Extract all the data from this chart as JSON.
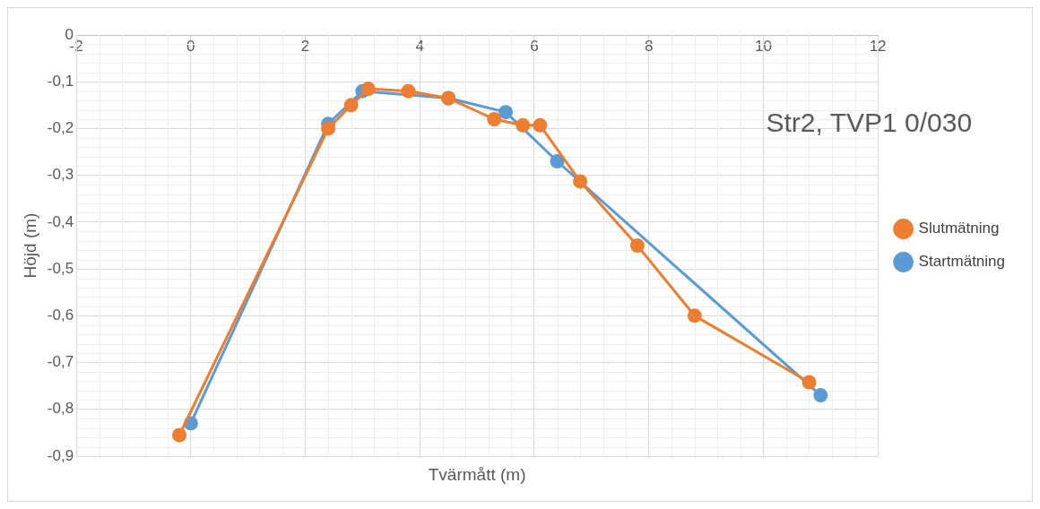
{
  "chart_data": {
    "type": "line",
    "annotations": [
      "Str2, TVP1 0/030"
    ],
    "xlabel": "Tvärmått (m)",
    "ylabel": "Höjd (m)",
    "xlim": [
      -2,
      12
    ],
    "xticks": [
      -2,
      0,
      2,
      4,
      6,
      8,
      10,
      12
    ],
    "ylim": [
      -0.9,
      0
    ],
    "yticks": [
      {
        "value": -0.9,
        "label": "-0,9"
      },
      {
        "value": -0.8,
        "label": "-0,8"
      },
      {
        "value": -0.7,
        "label": "-0,7"
      },
      {
        "value": -0.6,
        "label": "-0,6"
      },
      {
        "value": -0.5,
        "label": "-0,5"
      },
      {
        "value": -0.4,
        "label": "-0,4"
      },
      {
        "value": -0.3,
        "label": "-0,3"
      },
      {
        "value": -0.2,
        "label": "-0,2"
      },
      {
        "value": -0.1,
        "label": "-0,1"
      },
      0
    ],
    "grid": true,
    "legend": "right",
    "marker": "circle",
    "line_style": "solid",
    "series": [
      {
        "name": "Startmätning",
        "color": "#5b9bd5",
        "x": [
          0,
          2.4,
          3,
          4.5,
          5.5,
          6.4,
          11
        ],
        "values": [
          -0.83,
          -0.19,
          -0.12,
          -0.135,
          -0.165,
          -0.27,
          -0.77
        ]
      },
      {
        "name": "Slutmätning",
        "color": "#ed7d31",
        "x": [
          -0.2,
          2.4,
          2.8,
          3.1,
          3.8,
          4.5,
          5.3,
          5.8,
          6.1,
          6.8,
          7.8,
          8.8,
          10.8
        ],
        "values": [
          -0.855,
          -0.2,
          -0.15,
          -0.115,
          -0.12,
          -0.135,
          -0.18,
          -0.193,
          -0.193,
          -0.313,
          -0.45,
          -0.6,
          -0.742
        ]
      }
    ]
  }
}
